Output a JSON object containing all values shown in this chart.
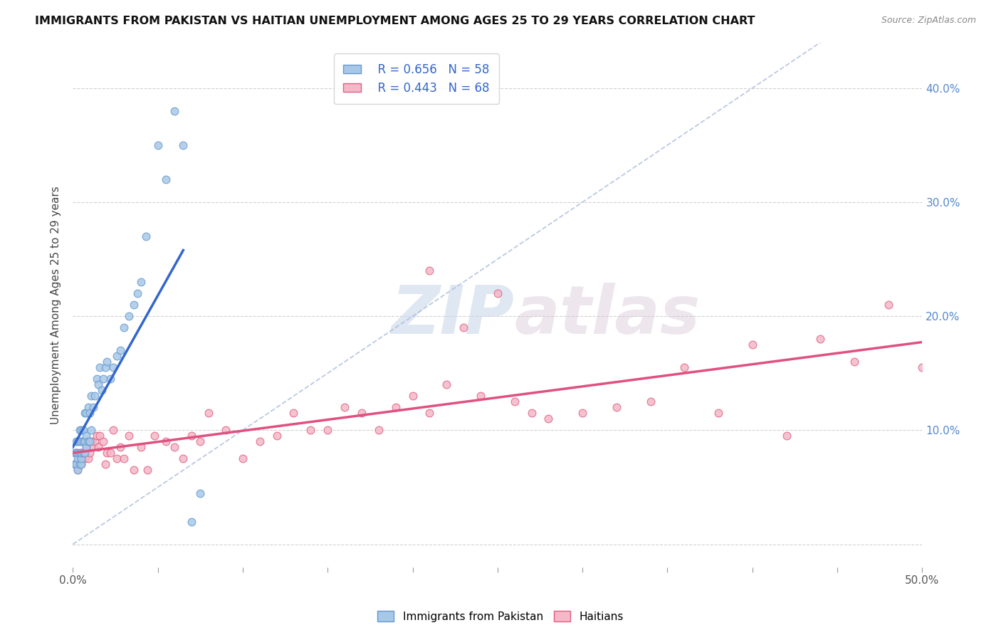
{
  "title": "IMMIGRANTS FROM PAKISTAN VS HAITIAN UNEMPLOYMENT AMONG AGES 25 TO 29 YEARS CORRELATION CHART",
  "source": "Source: ZipAtlas.com",
  "ylabel": "Unemployment Among Ages 25 to 29 years",
  "xlim": [
    0.0,
    0.5
  ],
  "ylim": [
    -0.02,
    0.44
  ],
  "xticks": [
    0.0,
    0.05,
    0.1,
    0.15,
    0.2,
    0.25,
    0.3,
    0.35,
    0.4,
    0.45,
    0.5
  ],
  "xticklabels": [
    "0.0%",
    "",
    "",
    "",
    "",
    "",
    "",
    "",
    "",
    "",
    "50.0%"
  ],
  "yticks_right": [
    0.0,
    0.1,
    0.2,
    0.3,
    0.4
  ],
  "yticklabels_right": [
    "",
    "10.0%",
    "20.0%",
    "30.0%",
    "40.0%"
  ],
  "pakistan_color": "#a8c8e8",
  "pakistan_edge": "#6699cc",
  "haitian_color": "#f4b8c8",
  "haitian_edge": "#e06080",
  "pakistan_r": 0.656,
  "pakistan_n": 58,
  "haitian_r": 0.443,
  "haitian_n": 68,
  "pakistan_line_color": "#3366cc",
  "haitian_line_color": "#e05080",
  "diagonal_color": "#aabbdd",
  "background_color": "#ffffff",
  "grid_color": "#cccccc",
  "watermark_zip": "ZIP",
  "watermark_atlas": "atlas",
  "pakistan_scatter_x": [
    0.001,
    0.001,
    0.002,
    0.002,
    0.002,
    0.003,
    0.003,
    0.003,
    0.003,
    0.004,
    0.004,
    0.004,
    0.004,
    0.005,
    0.005,
    0.005,
    0.005,
    0.005,
    0.006,
    0.006,
    0.006,
    0.007,
    0.007,
    0.007,
    0.008,
    0.008,
    0.008,
    0.009,
    0.009,
    0.01,
    0.01,
    0.011,
    0.011,
    0.012,
    0.013,
    0.014,
    0.015,
    0.016,
    0.017,
    0.018,
    0.019,
    0.02,
    0.022,
    0.024,
    0.026,
    0.028,
    0.03,
    0.033,
    0.036,
    0.038,
    0.04,
    0.043,
    0.05,
    0.055,
    0.06,
    0.065,
    0.07,
    0.075
  ],
  "pakistan_scatter_y": [
    0.07,
    0.08,
    0.07,
    0.08,
    0.09,
    0.065,
    0.075,
    0.08,
    0.09,
    0.07,
    0.08,
    0.09,
    0.1,
    0.07,
    0.075,
    0.08,
    0.09,
    0.1,
    0.08,
    0.09,
    0.1,
    0.08,
    0.09,
    0.115,
    0.085,
    0.095,
    0.115,
    0.09,
    0.12,
    0.09,
    0.115,
    0.1,
    0.13,
    0.12,
    0.13,
    0.145,
    0.14,
    0.155,
    0.135,
    0.145,
    0.155,
    0.16,
    0.145,
    0.155,
    0.165,
    0.17,
    0.19,
    0.2,
    0.21,
    0.22,
    0.23,
    0.27,
    0.35,
    0.32,
    0.38,
    0.35,
    0.02,
    0.045
  ],
  "haitian_scatter_x": [
    0.001,
    0.002,
    0.003,
    0.004,
    0.005,
    0.005,
    0.006,
    0.007,
    0.008,
    0.009,
    0.01,
    0.011,
    0.012,
    0.013,
    0.014,
    0.015,
    0.016,
    0.018,
    0.019,
    0.02,
    0.022,
    0.024,
    0.026,
    0.028,
    0.03,
    0.033,
    0.036,
    0.04,
    0.044,
    0.048,
    0.055,
    0.06,
    0.065,
    0.07,
    0.075,
    0.08,
    0.09,
    0.1,
    0.11,
    0.12,
    0.13,
    0.14,
    0.15,
    0.16,
    0.17,
    0.18,
    0.19,
    0.2,
    0.21,
    0.22,
    0.24,
    0.26,
    0.28,
    0.3,
    0.32,
    0.34,
    0.36,
    0.38,
    0.4,
    0.42,
    0.44,
    0.46,
    0.48,
    0.5,
    0.21,
    0.23,
    0.25,
    0.27
  ],
  "haitian_scatter_y": [
    0.07,
    0.08,
    0.065,
    0.075,
    0.07,
    0.08,
    0.09,
    0.075,
    0.085,
    0.075,
    0.08,
    0.09,
    0.085,
    0.09,
    0.095,
    0.085,
    0.095,
    0.09,
    0.07,
    0.08,
    0.08,
    0.1,
    0.075,
    0.085,
    0.075,
    0.095,
    0.065,
    0.085,
    0.065,
    0.095,
    0.09,
    0.085,
    0.075,
    0.095,
    0.09,
    0.115,
    0.1,
    0.075,
    0.09,
    0.095,
    0.115,
    0.1,
    0.1,
    0.12,
    0.115,
    0.1,
    0.12,
    0.13,
    0.115,
    0.14,
    0.13,
    0.125,
    0.11,
    0.115,
    0.12,
    0.125,
    0.155,
    0.115,
    0.175,
    0.095,
    0.18,
    0.16,
    0.21,
    0.155,
    0.24,
    0.19,
    0.22,
    0.115
  ]
}
